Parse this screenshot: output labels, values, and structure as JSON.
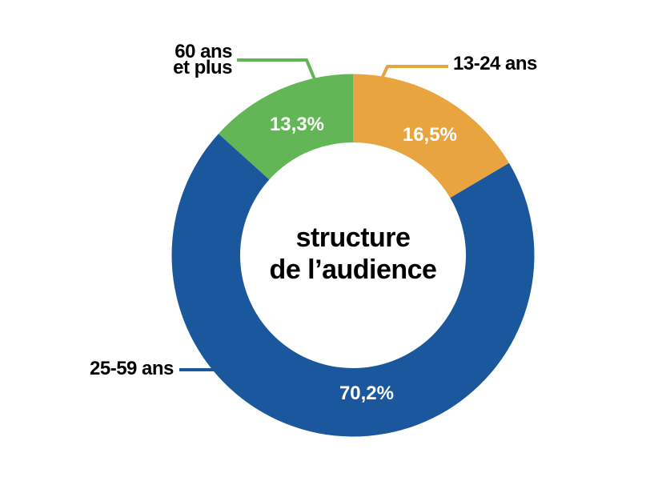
{
  "page": {
    "background": "#ffffff"
  },
  "chart_data": {
    "type": "pie",
    "subtype": "donut",
    "title": "structure de l'audience",
    "title_lines": [
      "structure",
      "de l’audience"
    ],
    "unit": "%",
    "direction": "clockwise",
    "start_angle_deg": 0,
    "legend_position": "callout-labels",
    "segments": [
      {
        "label": "13-24 ans",
        "label_lines": [
          "13-24 ans"
        ],
        "value": 16.5,
        "display": "16,5%",
        "color": "#E8A43F"
      },
      {
        "label": "25-59 ans",
        "label_lines": [
          "25-59 ans"
        ],
        "value": 70.2,
        "display": "70,2%",
        "color": "#1B579D"
      },
      {
        "label": "60 ans et plus",
        "label_lines": [
          "60 ans",
          "et plus"
        ],
        "value": 13.3,
        "display": "13,3%",
        "color": "#63B656"
      }
    ]
  }
}
